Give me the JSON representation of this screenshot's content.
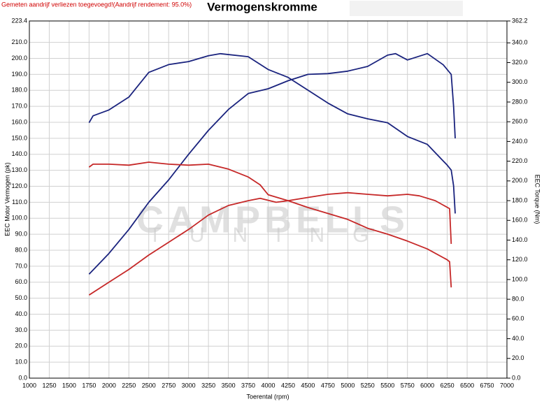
{
  "chart_data": {
    "type": "line",
    "title": "Vermogenskromme",
    "subtitle": "Gemeten aandrijf verliezen toegevoegd!(Aandrijf rendement: 95.0%)",
    "x_label": "Toerental (rpm)",
    "y_label": "EEC Motor Vermogen (pk)",
    "y2_label": "EEC Torque (Nm)",
    "watermark": [
      "CAMPBELLS",
      "TUNING"
    ],
    "grid": true,
    "xlim": [
      1000,
      7000
    ],
    "xticks": [
      1000,
      1250,
      1500,
      1750,
      2000,
      2250,
      2500,
      2750,
      3000,
      3250,
      3500,
      3750,
      4000,
      4250,
      4500,
      4750,
      5000,
      5250,
      5500,
      5750,
      6000,
      6250,
      6500,
      6750,
      7000
    ],
    "ylim": [
      0,
      223.4
    ],
    "yticks": [
      {
        "value": 0,
        "label": "0.0"
      },
      {
        "value": 10,
        "label": "10.0"
      },
      {
        "value": 20,
        "label": "20.0"
      },
      {
        "value": 30,
        "label": "30.0"
      },
      {
        "value": 40,
        "label": "40.0"
      },
      {
        "value": 50,
        "label": "50.0"
      },
      {
        "value": 60,
        "label": "60.0"
      },
      {
        "value": 70,
        "label": "70.0"
      },
      {
        "value": 80,
        "label": "80.0"
      },
      {
        "value": 90,
        "label": "90.0"
      },
      {
        "value": 100,
        "label": "100.0"
      },
      {
        "value": 110,
        "label": "110.0"
      },
      {
        "value": 120,
        "label": "120.0"
      },
      {
        "value": 130,
        "label": "130.0"
      },
      {
        "value": 140,
        "label": "140.0"
      },
      {
        "value": 150,
        "label": "150.0"
      },
      {
        "value": 160,
        "label": "160.0"
      },
      {
        "value": 170,
        "label": "170.0"
      },
      {
        "value": 180,
        "label": "180.0"
      },
      {
        "value": 190,
        "label": "190.0"
      },
      {
        "value": 200,
        "label": "200.0"
      },
      {
        "value": 210,
        "label": "210.0"
      },
      223.4
    ],
    "y2lim": [
      0,
      362.2
    ],
    "y2ticks": [
      {
        "value": 0,
        "label": "0.0"
      },
      {
        "value": 20,
        "label": "20.0"
      },
      {
        "value": 40,
        "label": "40.0"
      },
      {
        "value": 60,
        "label": "60.0"
      },
      {
        "value": 80,
        "label": "80.0"
      },
      {
        "value": 100,
        "label": "100.0"
      },
      {
        "value": 120,
        "label": "120.0"
      },
      {
        "value": 140,
        "label": "140.0"
      },
      {
        "value": 160,
        "label": "160.0"
      },
      {
        "value": 180,
        "label": "180.0"
      },
      {
        "value": 200,
        "label": "200.0"
      },
      {
        "value": 220,
        "label": "220.0"
      },
      {
        "value": 240,
        "label": "240.0"
      },
      {
        "value": 260,
        "label": "260.0"
      },
      {
        "value": 280,
        "label": "280.0"
      },
      {
        "value": 300,
        "label": "300.0"
      },
      {
        "value": 320,
        "label": "320.0"
      },
      {
        "value": 340,
        "label": "340.0"
      },
      362.2
    ],
    "series": [
      {
        "color": "#1a237e",
        "axis": "y",
        "x": [
          1750,
          2000,
          2250,
          2500,
          2750,
          3000,
          3250,
          3500,
          3750,
          4000,
          4250,
          4500,
          4750,
          5000,
          5250,
          5500,
          5600,
          5750,
          6000,
          6200,
          6300,
          6330,
          6350
        ],
        "values": [
          65,
          78,
          93,
          110,
          124,
          140,
          155,
          168,
          178,
          181,
          186,
          190,
          190.5,
          192,
          195,
          202,
          203,
          199,
          203,
          196,
          190,
          170,
          150
        ]
      },
      {
        "color": "#1a237e",
        "axis": "y2",
        "x": [
          1750,
          1800,
          2000,
          2250,
          2500,
          2750,
          3000,
          3250,
          3400,
          3750,
          4000,
          4250,
          4500,
          4750,
          5000,
          5250,
          5500,
          5750,
          6000,
          6250,
          6300,
          6330,
          6350
        ],
        "values": [
          259,
          266,
          272,
          285,
          310,
          318,
          321,
          327,
          329,
          326,
          313,
          305,
          292,
          279,
          268,
          263,
          259,
          245,
          237,
          216,
          211,
          195,
          167
        ]
      },
      {
        "color": "#c62828",
        "axis": "y",
        "x": [
          1750,
          2000,
          2250,
          2500,
          2750,
          3000,
          3250,
          3500,
          3750,
          3900,
          4100,
          4250,
          4500,
          4750,
          5000,
          5250,
          5500,
          5750,
          5900,
          6100,
          6280,
          6300
        ],
        "values": [
          52,
          60,
          68,
          77,
          85,
          93,
          102,
          108,
          111,
          112.5,
          110,
          111,
          113,
          115,
          116,
          115,
          114,
          115,
          114,
          111,
          106,
          84
        ]
      },
      {
        "color": "#c62828",
        "axis": "y2",
        "x": [
          1750,
          1800,
          2000,
          2250,
          2500,
          2750,
          3000,
          3250,
          3500,
          3750,
          3900,
          4000,
          4250,
          4500,
          4750,
          5000,
          5250,
          5500,
          5750,
          6000,
          6250,
          6280,
          6300
        ],
        "values": [
          214,
          217,
          217,
          216,
          219,
          217,
          216,
          217,
          212,
          204,
          196,
          186,
          180,
          173,
          167,
          161,
          152,
          146,
          139,
          131,
          120,
          118,
          92
        ]
      }
    ]
  }
}
